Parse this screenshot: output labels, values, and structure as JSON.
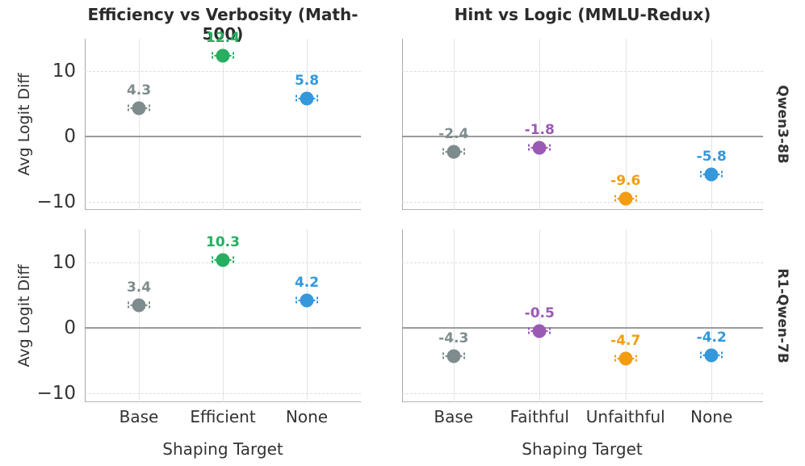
{
  "figure": {
    "ylabel": "Avg Logit Diff",
    "xlabel": "Shaping Target",
    "row_labels": [
      "Qwen3-8B",
      "R1-Qwen-7B"
    ],
    "col_titles": [
      "Efficiency vs Verbosity (Math-500)",
      "Hint vs Logic (MMLU-Redux)"
    ]
  },
  "style": {
    "colors": {
      "base": "#7f8c8d",
      "efficient": "#27ae60",
      "none": "#3498db",
      "faithful": "#9b59b6",
      "unfaithful": "#f39c12",
      "zero_line": "#9b9b9b",
      "grid": "#e0e0e0",
      "text": "#333333",
      "title": "#2b2b2b"
    }
  },
  "chart_data": [
    {
      "type": "scatter",
      "row": 0,
      "col": 0,
      "title": "Efficiency vs Verbosity (Math-500)",
      "row_label": "Qwen3-8B",
      "categories": [
        "Base",
        "Efficient",
        "None"
      ],
      "values": [
        4.3,
        12.4,
        5.8
      ],
      "value_labels": [
        "4.3",
        "12.4",
        "5.8"
      ],
      "point_colors": [
        "#7f8c8d",
        "#27ae60",
        "#3498db"
      ],
      "has_error_bars": true,
      "ylim": [
        -11.3,
        15.0
      ],
      "yticks": [
        10,
        0,
        -10
      ],
      "ytick_labels": [
        "10",
        "0",
        "−10"
      ],
      "grid": true,
      "zero_line": true
    },
    {
      "type": "scatter",
      "row": 0,
      "col": 1,
      "title": "Hint vs Logic (MMLU-Redux)",
      "row_label": "Qwen3-8B",
      "categories": [
        "Base",
        "Faithful",
        "Unfaithful",
        "None"
      ],
      "values": [
        -2.4,
        -1.8,
        -9.6,
        -5.8
      ],
      "value_labels": [
        "-2.4",
        "-1.8",
        "-9.6",
        "-5.8"
      ],
      "point_colors": [
        "#7f8c8d",
        "#9b59b6",
        "#f39c12",
        "#3498db"
      ],
      "has_error_bars": true,
      "ylim": [
        -11.3,
        15.0
      ],
      "yticks": [
        10,
        0,
        -10
      ],
      "ytick_labels": [
        "10",
        "0",
        "−10"
      ],
      "grid": true,
      "zero_line": true
    },
    {
      "type": "scatter",
      "row": 1,
      "col": 0,
      "title": "Efficiency vs Verbosity (Math-500)",
      "row_label": "R1-Qwen-7B",
      "categories": [
        "Base",
        "Efficient",
        "None"
      ],
      "values": [
        3.4,
        10.3,
        4.2
      ],
      "value_labels": [
        "3.4",
        "10.3",
        "4.2"
      ],
      "point_colors": [
        "#7f8c8d",
        "#27ae60",
        "#3498db"
      ],
      "has_error_bars": true,
      "xlabel": "Shaping Target",
      "ylim": [
        -11.3,
        15.0
      ],
      "yticks": [
        10,
        0,
        -10
      ],
      "ytick_labels": [
        "10",
        "0",
        "−10"
      ],
      "grid": true,
      "zero_line": true
    },
    {
      "type": "scatter",
      "row": 1,
      "col": 1,
      "title": "Hint vs Logic (MMLU-Redux)",
      "row_label": "R1-Qwen-7B",
      "categories": [
        "Base",
        "Faithful",
        "Unfaithful",
        "None"
      ],
      "values": [
        -4.3,
        -0.5,
        -4.7,
        -4.2
      ],
      "value_labels": [
        "-4.3",
        "-0.5",
        "-4.7",
        "-4.2"
      ],
      "point_colors": [
        "#7f8c8d",
        "#9b59b6",
        "#f39c12",
        "#3498db"
      ],
      "has_error_bars": true,
      "xlabel": "Shaping Target",
      "ylim": [
        -11.3,
        15.0
      ],
      "yticks": [
        10,
        0,
        -10
      ],
      "ytick_labels": [
        "10",
        "0",
        "−10"
      ],
      "grid": true,
      "zero_line": true
    }
  ]
}
